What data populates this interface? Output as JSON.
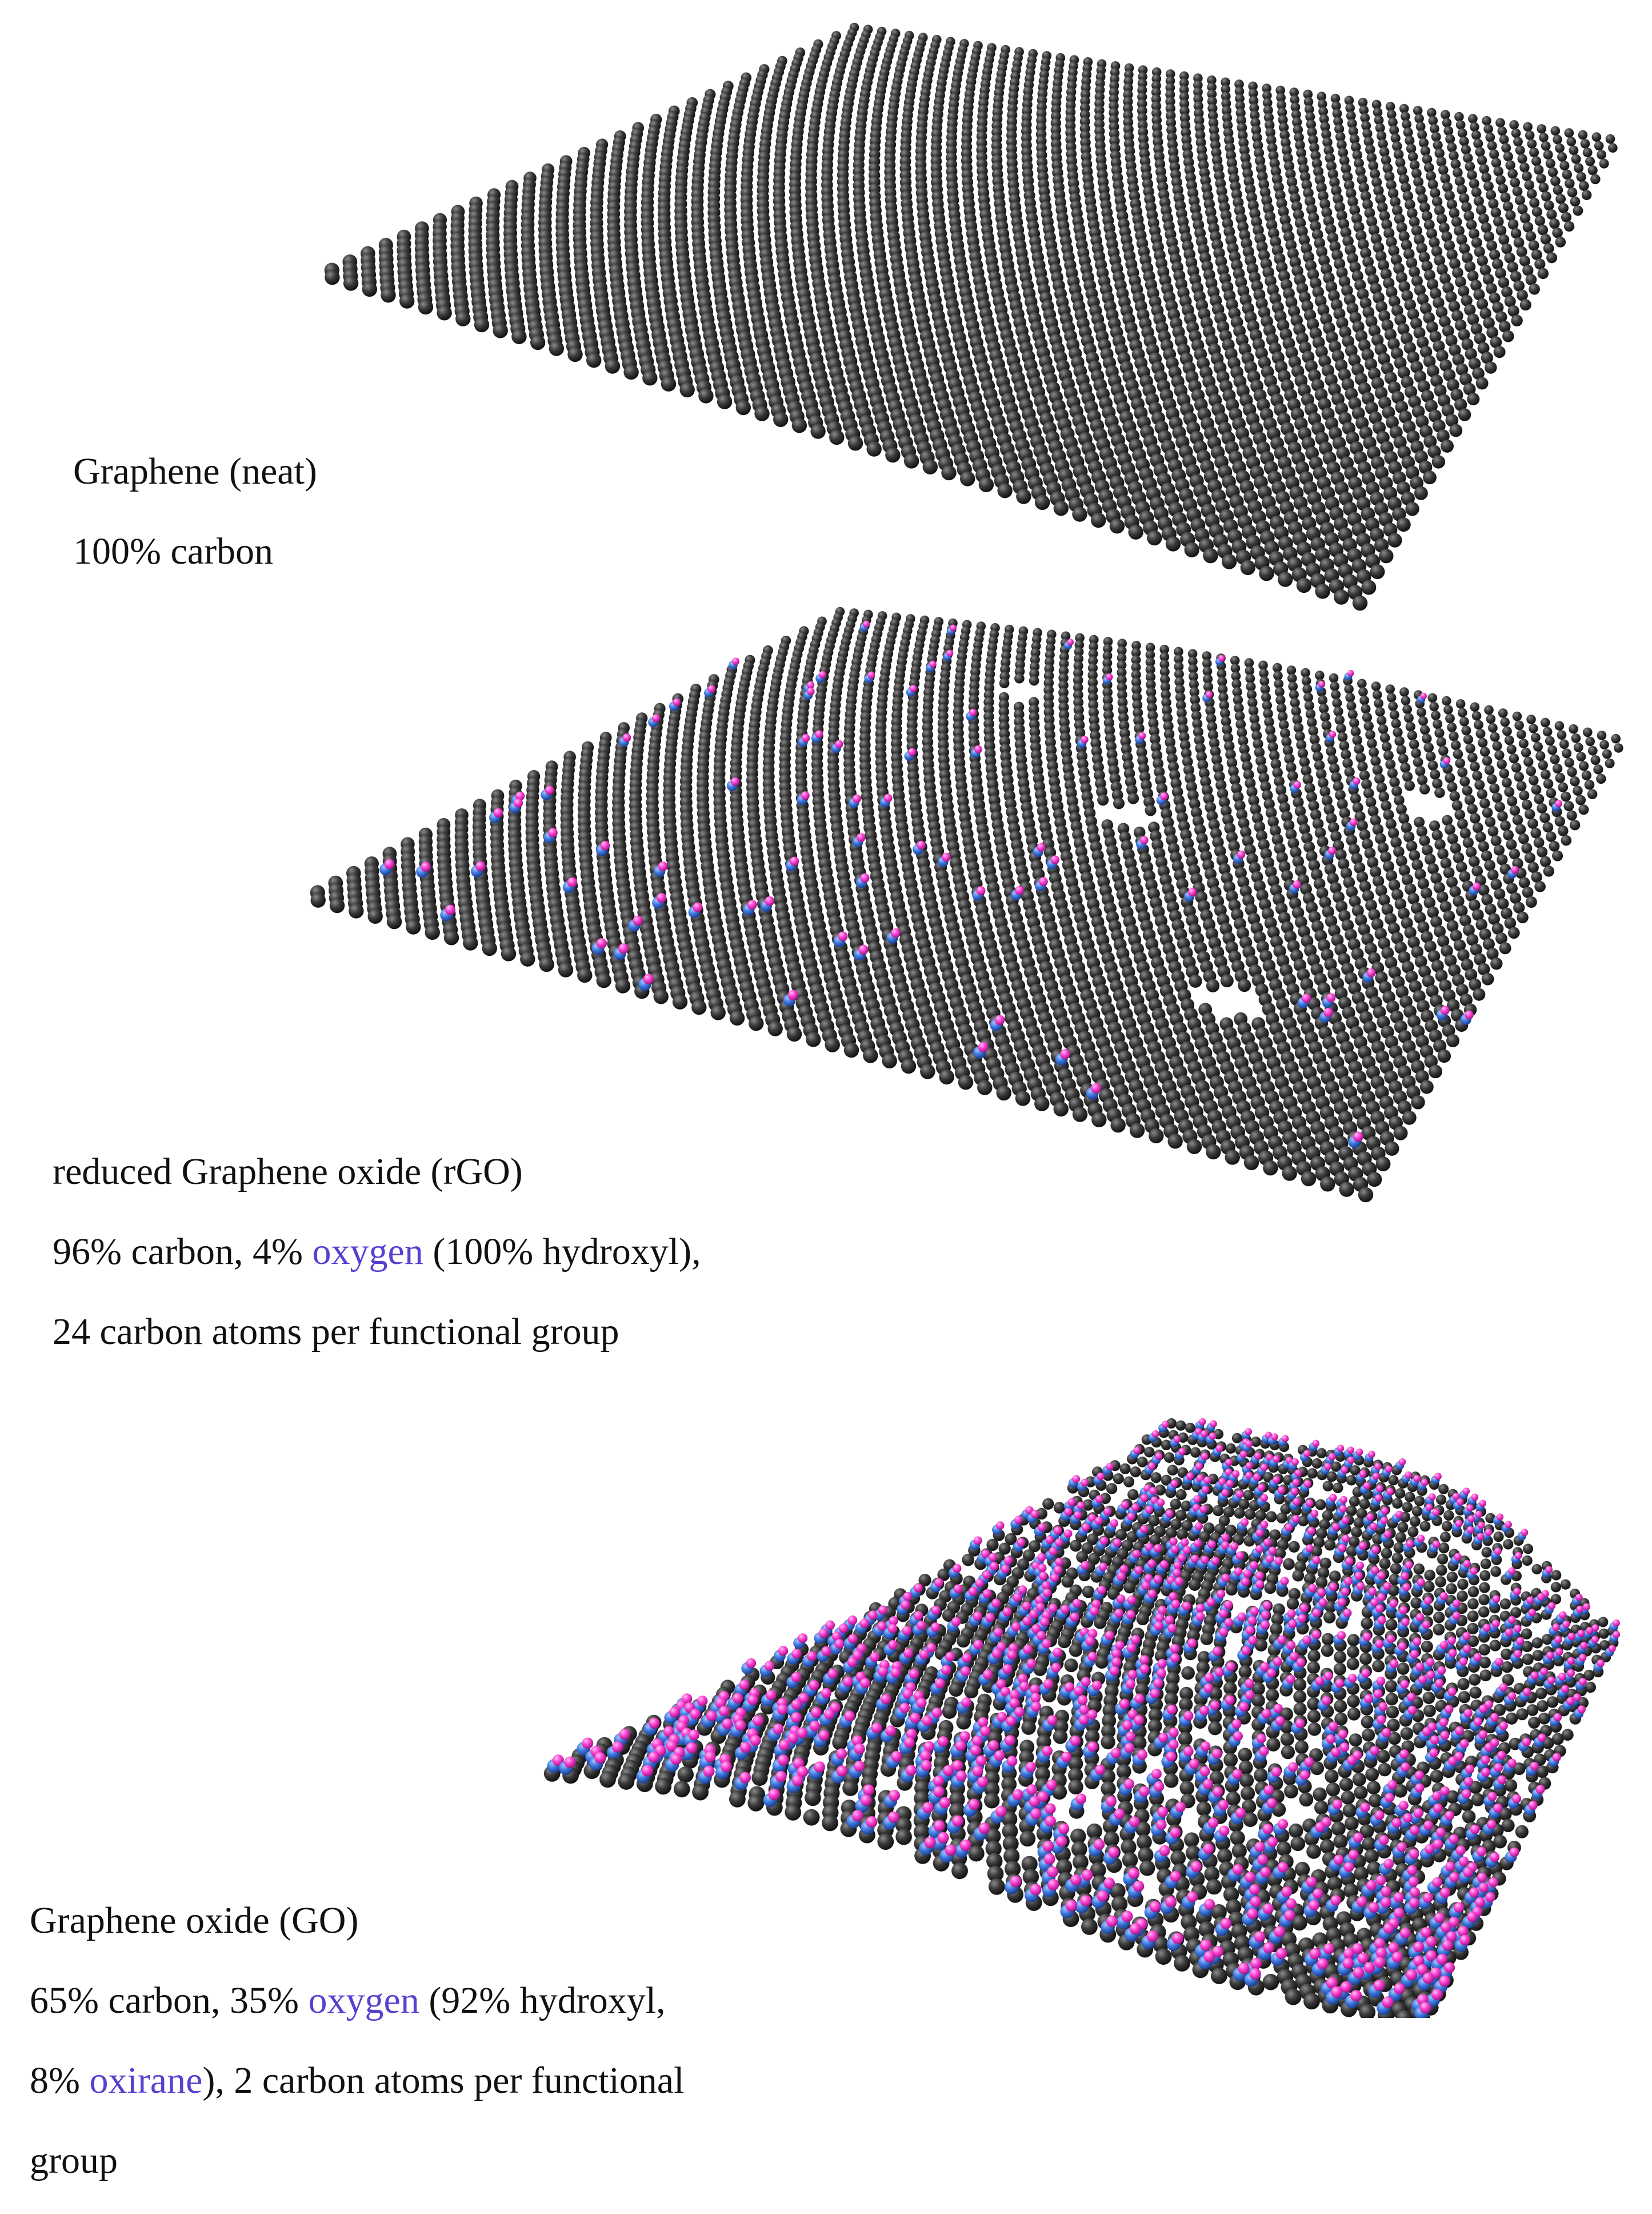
{
  "colors": {
    "carbon": "#3a3a3a",
    "hydroxyl_oxygen": "#3f7ae0",
    "hydrogen": "#ff3fd0",
    "highlight_text": "#5a3fd0"
  },
  "panels": [
    {
      "id": "graphene",
      "lines": [
        [
          "Graphene (neat)"
        ],
        [
          "100% carbon"
        ]
      ]
    },
    {
      "id": "rgo",
      "lines": [
        [
          "reduced Graphene oxide (rGO)"
        ],
        [
          "96% carbon,  4% ",
          {
            "hl": "oxygen"
          },
          " (100% hydroxyl),"
        ],
        [
          "24 carbon atoms per functional group"
        ]
      ]
    },
    {
      "id": "go",
      "lines": [
        [
          "Graphene oxide (GO)"
        ],
        [
          "65% carbon,  35% ",
          {
            "hl": "oxygen"
          },
          " (92% hydroxyl,"
        ],
        [
          "8% ",
          {
            "hl": "oxirane"
          },
          "), 2 carbon atoms per functional"
        ],
        [
          "group"
        ]
      ]
    }
  ]
}
